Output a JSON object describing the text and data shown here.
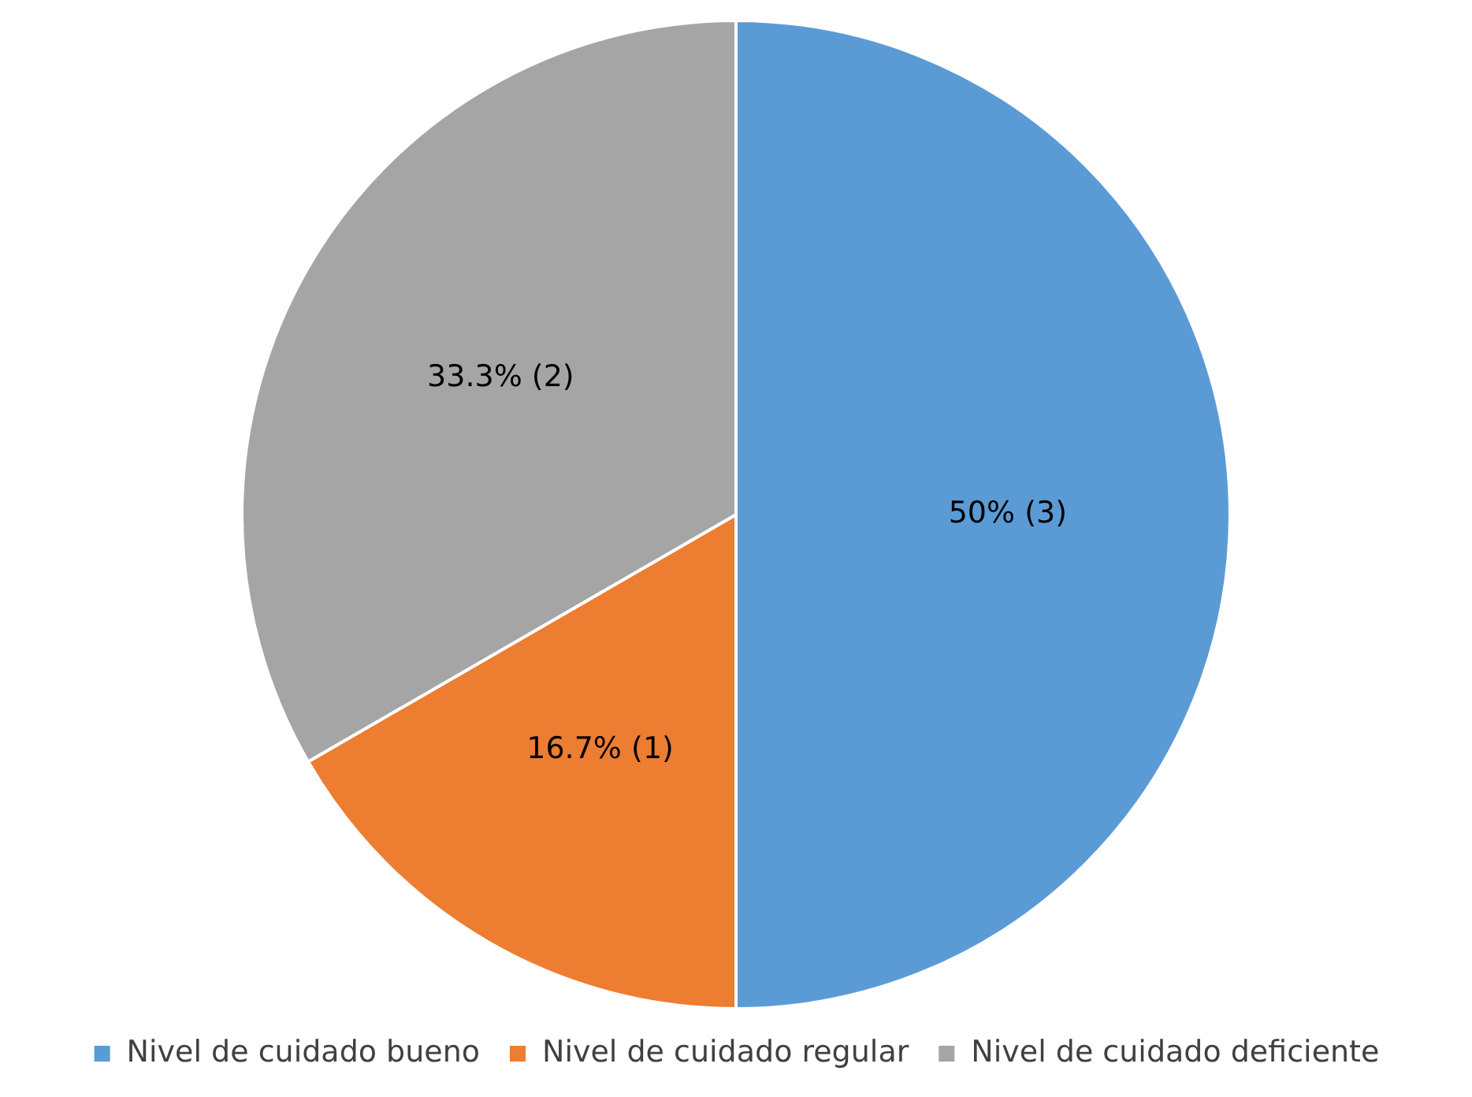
{
  "chart_data": {
    "type": "pie",
    "categories": [
      "Nivel de cuidado bueno",
      "Nivel de cuidado regular",
      "Nivel de cuidado deficiente"
    ],
    "values": [
      3,
      1,
      2
    ],
    "value_labels": [
      "50% (3)",
      "16.7% (1)",
      "33.3% (2)"
    ],
    "colors": [
      "#5b9bd5",
      "#ed7d31",
      "#a5a5a5"
    ],
    "legend": "bottom"
  }
}
